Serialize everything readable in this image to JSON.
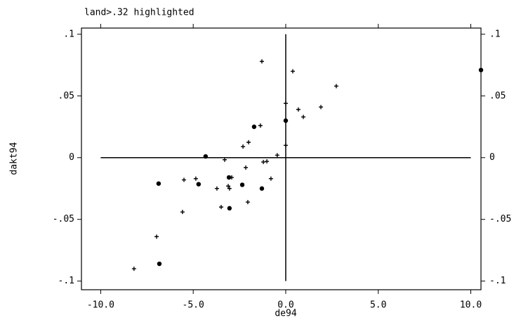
{
  "chart_data": {
    "type": "scatter",
    "title": "land>.32 highlighted",
    "x_label": "de94",
    "y_label": "dakt94",
    "xlim": [
      -11.04,
      10.55
    ],
    "ylim": [
      -0.107,
      0.105
    ],
    "xticks": [
      {
        "value": -10,
        "label": "-10.0"
      },
      {
        "value": -5,
        "label": "-5.0"
      },
      {
        "value": 0,
        "label": "0.0"
      },
      {
        "value": 5,
        "label": "5.0"
      },
      {
        "value": 10,
        "label": "10.0"
      }
    ],
    "yticks": [
      {
        "value": 0.1,
        "label": ".1"
      },
      {
        "value": 0.05,
        "label": ".05"
      },
      0,
      {
        "value": -0.05,
        "label": "-.05"
      },
      {
        "value": -0.1,
        "label": "-.1"
      }
    ],
    "color": "#000000",
    "series": [
      {
        "marker": "plus",
        "x": [
          -1.29,
          0.38,
          2.73,
          0.68,
          1.9,
          0.95,
          0,
          0,
          -1.37,
          -2.31,
          -2.01,
          -0.46,
          -1.02,
          -1.21,
          -2.16,
          -0.8,
          -2.92,
          -3.11,
          -3.04,
          -3.72,
          -3.3,
          -3.49,
          -2.05,
          -5.58,
          -5.5,
          -4.86,
          -6.98,
          -8.2
        ],
        "values": [
          0.078,
          0.07,
          0.058,
          0.039,
          0.041,
          0.033,
          0.044,
          0.01,
          0.026,
          0.009,
          0.0125,
          0.002,
          -0.003,
          -0.0035,
          -0.008,
          -0.017,
          -0.016,
          -0.023,
          -0.025,
          -0.025,
          -0.0017,
          -0.04,
          -0.036,
          -0.044,
          -0.018,
          -0.017,
          -0.064,
          -0.09
        ]
      },
      {
        "marker": "dot",
        "x": [
          10.55,
          -1.71,
          0,
          -4.33,
          -6.87,
          -4.71,
          -2.35,
          -3.07,
          -1.29,
          -3.04,
          -6.83
        ],
        "values": [
          0.071,
          0.025,
          0.03,
          0.001,
          -0.021,
          -0.0215,
          -0.022,
          -0.016,
          -0.025,
          -0.041,
          -0.086
        ]
      }
    ]
  }
}
